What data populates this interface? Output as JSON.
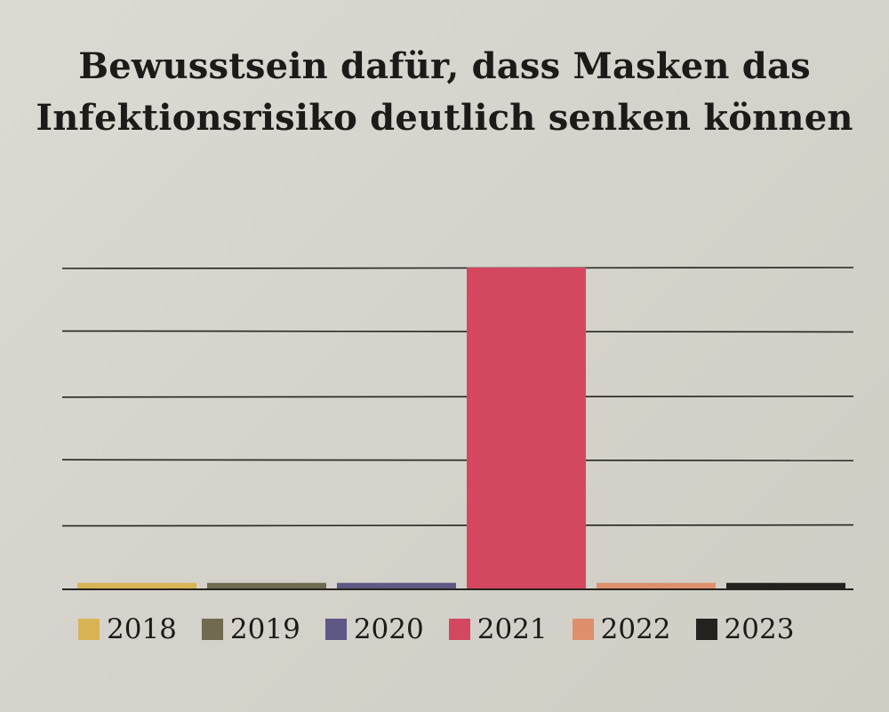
{
  "chart_data": {
    "type": "bar",
    "title": "Bewusstsein dafür, dass Masken das Infektionsrisiko deutlich senken können",
    "title_lines": [
      "Bewusstsein dafür, dass Masken das",
      "Infektionsrisiko deutlich senken können"
    ],
    "categories": [
      "2018",
      "2019",
      "2020",
      "2021",
      "2022",
      "2023"
    ],
    "values": [
      0.1,
      0.1,
      0.1,
      5,
      0.1,
      0.1
    ],
    "colors": [
      "#d9b454",
      "#6f6a50",
      "#5d5884",
      "#d3485f",
      "#df8f6b",
      "#24221f"
    ],
    "ylim": [
      0,
      5
    ],
    "gridlines": 5,
    "grid": true,
    "legend_position": "bottom",
    "xlabel": "",
    "ylabel": ""
  }
}
